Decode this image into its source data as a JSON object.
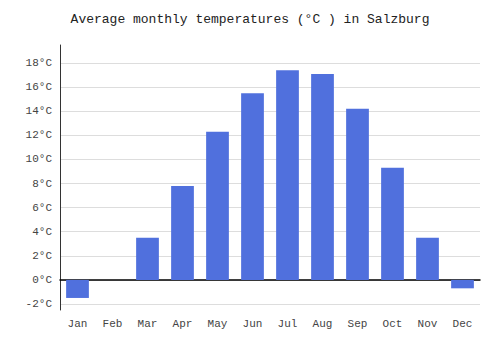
{
  "chart_data": {
    "type": "bar",
    "title": "Average monthly temperatures (°C ) in Salzburg",
    "categories": [
      "Jan",
      "Feb",
      "Mar",
      "Apr",
      "May",
      "Jun",
      "Jul",
      "Aug",
      "Sep",
      "Oct",
      "Nov",
      "Dec"
    ],
    "values": [
      -1.5,
      0.0,
      3.5,
      7.8,
      12.3,
      15.5,
      17.4,
      17.1,
      14.2,
      9.3,
      3.5,
      -0.7
    ],
    "ylim": [
      -2.5,
      19.5
    ],
    "yticks": [
      {
        "value": -2,
        "label": "-2°C"
      },
      {
        "value": 0,
        "label": "0°C"
      },
      {
        "value": 2,
        "label": "2°C"
      },
      {
        "value": 4,
        "label": "4°C"
      },
      {
        "value": 6,
        "label": "6°C"
      },
      {
        "value": 8,
        "label": "8°C"
      },
      {
        "value": 10,
        "label": "10°C"
      },
      {
        "value": 12,
        "label": "12°C"
      },
      {
        "value": 14,
        "label": "14°C"
      },
      {
        "value": 16,
        "label": "16°C"
      },
      {
        "value": 18,
        "label": "18°C"
      }
    ],
    "grid": true
  }
}
